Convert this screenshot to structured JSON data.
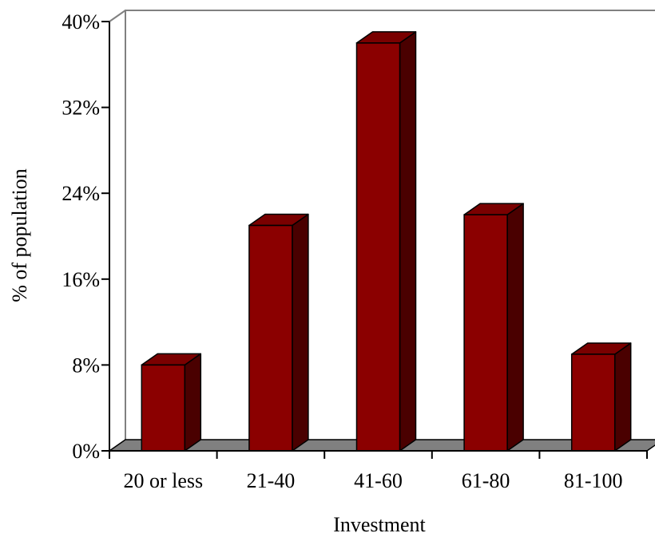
{
  "chart_data": {
    "type": "bar",
    "title": "",
    "xlabel": "Investment",
    "ylabel": "% of population",
    "categories": [
      "20 or less",
      "21-40",
      "41-60",
      "61-80",
      "81-100"
    ],
    "values": [
      8,
      21,
      38,
      22,
      9
    ],
    "unit": "%",
    "ylim": [
      0,
      40
    ],
    "yticks": [
      0,
      8,
      16,
      24,
      32,
      40
    ],
    "ytick_labels": [
      "0%",
      "8%",
      "16%",
      "24%",
      "32%",
      "40%"
    ],
    "grid": false,
    "legend": "none",
    "style": "3d",
    "colors": {
      "bar_front": "#8b0000",
      "bar_top": "#7a0000",
      "bar_side": "#4a0000",
      "floor": "#808080",
      "frame": "#808080",
      "axis": "#000000"
    }
  }
}
